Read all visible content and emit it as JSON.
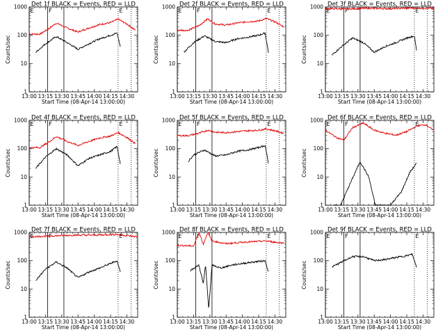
{
  "chart_data": {
    "type": "line",
    "xlabel": "Start Time (08-Apr-14 13:00:00)",
    "ylabel": "Counts/sec",
    "y_scale": "log",
    "ylim": [
      1,
      1000
    ],
    "xlim": [
      "13:00",
      "14:40"
    ],
    "x_tick_labels": [
      "13:00",
      "13:15",
      "13:30",
      "13:45",
      "14:00",
      "14:15",
      "14:30"
    ],
    "y_tick_labels": [
      "1",
      "10",
      "100",
      "1000"
    ],
    "series_colors": {
      "events": "#000000",
      "lld": "#e00000"
    },
    "panels": [
      {
        "title": "Det 1f BLACK = Events, RED = LLD",
        "markers": [
          {
            "label": "E",
            "time": "13:00",
            "style": "solid"
          },
          {
            "label": "F",
            "time": "13:17",
            "style": "solid"
          },
          {
            "label": "",
            "time": "13:32",
            "style": "solid"
          },
          {
            "label": "E",
            "time": "14:22",
            "style": "dotted"
          },
          {
            "label": "",
            "time": "14:34",
            "style": "dotted"
          }
        ],
        "events": [
          [
            "13:06",
            25
          ],
          [
            "13:15",
            50
          ],
          [
            "13:25",
            90
          ],
          [
            "13:35",
            55
          ],
          [
            "13:45",
            32
          ],
          [
            "13:55",
            50
          ],
          [
            "14:05",
            75
          ],
          [
            "14:15",
            100
          ],
          [
            "14:21",
            120
          ],
          [
            "14:24",
            40
          ]
        ],
        "lld": [
          [
            "13:00",
            110
          ],
          [
            "13:10",
            110
          ],
          [
            "13:18",
            170
          ],
          [
            "13:25",
            270
          ],
          [
            "13:35",
            180
          ],
          [
            "13:45",
            130
          ],
          [
            "13:55",
            180
          ],
          [
            "14:05",
            240
          ],
          [
            "14:15",
            280
          ],
          [
            "14:22",
            370
          ],
          [
            "14:30",
            250
          ],
          [
            "14:38",
            150
          ]
        ]
      },
      {
        "title": "Det 2f BLACK = Events, RED = LLD",
        "markers": [
          {
            "label": "E",
            "time": "13:00",
            "style": "solid"
          },
          {
            "label": "F",
            "time": "13:17",
            "style": "solid"
          },
          {
            "label": "",
            "time": "13:32",
            "style": "solid"
          },
          {
            "label": "E",
            "time": "14:22",
            "style": "dotted"
          },
          {
            "label": "",
            "time": "14:34",
            "style": "dotted"
          }
        ],
        "events": [
          [
            "13:06",
            25
          ],
          [
            "13:15",
            55
          ],
          [
            "13:25",
            95
          ],
          [
            "13:35",
            60
          ],
          [
            "13:45",
            55
          ],
          [
            "13:55",
            75
          ],
          [
            "14:05",
            85
          ],
          [
            "14:15",
            100
          ],
          [
            "14:21",
            120
          ],
          [
            "14:24",
            25
          ]
        ],
        "lld": [
          [
            "13:00",
            150
          ],
          [
            "13:10",
            150
          ],
          [
            "13:20",
            220
          ],
          [
            "13:28",
            380
          ],
          [
            "13:35",
            250
          ],
          [
            "13:45",
            230
          ],
          [
            "13:55",
            270
          ],
          [
            "14:05",
            300
          ],
          [
            "14:15",
            320
          ],
          [
            "14:22",
            390
          ],
          [
            "14:30",
            300
          ],
          [
            "14:38",
            200
          ]
        ]
      },
      {
        "title": "Det 3f BLACK = Events, RED = LLD",
        "markers": [
          {
            "label": "E",
            "time": "13:00",
            "style": "solid"
          },
          {
            "label": "F",
            "time": "13:17",
            "style": "solid"
          },
          {
            "label": "",
            "time": "13:32",
            "style": "solid"
          },
          {
            "label": "E",
            "time": "14:22",
            "style": "dotted"
          },
          {
            "label": "",
            "time": "14:34",
            "style": "dotted"
          }
        ],
        "events": [
          [
            "13:06",
            20
          ],
          [
            "13:15",
            40
          ],
          [
            "13:25",
            80
          ],
          [
            "13:35",
            55
          ],
          [
            "13:45",
            25
          ],
          [
            "13:55",
            40
          ],
          [
            "14:05",
            55
          ],
          [
            "14:15",
            80
          ],
          [
            "14:22",
            95
          ],
          [
            "14:24",
            30
          ]
        ],
        "lld": [
          [
            "13:00",
            880
          ],
          [
            "13:20",
            850
          ],
          [
            "13:40",
            900
          ],
          [
            "14:00",
            870
          ],
          [
            "14:20",
            920
          ],
          [
            "14:40",
            880
          ]
        ]
      },
      {
        "title": "Det 4f BLACK = Events, RED = LLD",
        "markers": [
          {
            "label": "E",
            "time": "13:00",
            "style": "solid"
          },
          {
            "label": "F",
            "time": "13:17",
            "style": "solid"
          },
          {
            "label": "",
            "time": "13:32",
            "style": "solid"
          },
          {
            "label": "E",
            "time": "14:22",
            "style": "dotted"
          },
          {
            "label": "",
            "time": "14:34",
            "style": "dotted"
          }
        ],
        "events": [
          [
            "13:06",
            20
          ],
          [
            "13:15",
            50
          ],
          [
            "13:25",
            100
          ],
          [
            "13:35",
            60
          ],
          [
            "13:45",
            25
          ],
          [
            "13:55",
            45
          ],
          [
            "14:05",
            60
          ],
          [
            "14:15",
            80
          ],
          [
            "14:21",
            120
          ],
          [
            "14:24",
            30
          ]
        ],
        "lld": [
          [
            "13:00",
            110
          ],
          [
            "13:10",
            110
          ],
          [
            "13:18",
            170
          ],
          [
            "13:25",
            270
          ],
          [
            "13:35",
            180
          ],
          [
            "13:45",
            130
          ],
          [
            "13:55",
            180
          ],
          [
            "14:05",
            240
          ],
          [
            "14:15",
            280
          ],
          [
            "14:22",
            370
          ],
          [
            "14:30",
            250
          ],
          [
            "14:38",
            150
          ]
        ]
      },
      {
        "title": "Det 5f BLACK = Events, RED = LLD",
        "markers": [
          {
            "label": "E",
            "time": "13:00",
            "style": "solid"
          },
          {
            "label": "F",
            "time": "13:17",
            "style": "solid"
          },
          {
            "label": "",
            "time": "13:32",
            "style": "solid"
          },
          {
            "label": "E",
            "time": "14:22",
            "style": "dotted"
          },
          {
            "label": "",
            "time": "14:34",
            "style": "dotted"
          }
        ],
        "events": [
          [
            "13:10",
            35
          ],
          [
            "13:15",
            60
          ],
          [
            "13:25",
            90
          ],
          [
            "13:35",
            55
          ],
          [
            "13:45",
            60
          ],
          [
            "13:55",
            80
          ],
          [
            "14:05",
            90
          ],
          [
            "14:15",
            110
          ],
          [
            "14:21",
            130
          ],
          [
            "14:24",
            30
          ]
        ],
        "lld": [
          [
            "13:00",
            290
          ],
          [
            "13:10",
            290
          ],
          [
            "13:20",
            350
          ],
          [
            "13:28",
            450
          ],
          [
            "13:35",
            380
          ],
          [
            "13:45",
            370
          ],
          [
            "13:55",
            400
          ],
          [
            "14:05",
            430
          ],
          [
            "14:15",
            450
          ],
          [
            "14:22",
            500
          ],
          [
            "14:30",
            430
          ],
          [
            "14:38",
            350
          ]
        ]
      },
      {
        "title": "Det 6f BLACK = Events, RED = LLD",
        "markers": [
          {
            "label": "E",
            "time": "13:00",
            "style": "solid"
          },
          {
            "label": "F",
            "time": "13:17",
            "style": "solid"
          },
          {
            "label": "",
            "time": "13:32",
            "style": "solid"
          },
          {
            "label": "E",
            "time": "14:22",
            "style": "dotted"
          },
          {
            "label": "",
            "time": "14:34",
            "style": "dotted"
          }
        ],
        "events": [
          [
            "13:08",
            1
          ],
          [
            "13:14",
            1
          ],
          [
            "13:22",
            5
          ],
          [
            "13:32",
            35
          ],
          [
            "13:40",
            10
          ],
          [
            "13:46",
            1
          ],
          [
            "14:00",
            1
          ],
          [
            "14:10",
            3
          ],
          [
            "14:18",
            15
          ],
          [
            "14:24",
            30
          ]
        ],
        "lld": [
          [
            "13:00",
            450
          ],
          [
            "13:10",
            250
          ],
          [
            "13:17",
            200
          ],
          [
            "13:25",
            550
          ],
          [
            "13:35",
            800
          ],
          [
            "13:45",
            450
          ],
          [
            "13:55",
            350
          ],
          [
            "14:05",
            300
          ],
          [
            "14:15",
            400
          ],
          [
            "14:25",
            650
          ],
          [
            "14:33",
            700
          ],
          [
            "14:39",
            450
          ]
        ]
      },
      {
        "title": "Det 7f BLACK = Events, RED = LLD",
        "markers": [
          {
            "label": "E",
            "time": "13:00",
            "style": "solid"
          },
          {
            "label": "F",
            "time": "13:17",
            "style": "solid"
          },
          {
            "label": "",
            "time": "13:32",
            "style": "solid"
          },
          {
            "label": "E",
            "time": "14:22",
            "style": "dotted"
          },
          {
            "label": "",
            "time": "14:34",
            "style": "dotted"
          }
        ],
        "events": [
          [
            "13:06",
            20
          ],
          [
            "13:15",
            50
          ],
          [
            "13:25",
            90
          ],
          [
            "13:35",
            55
          ],
          [
            "13:45",
            25
          ],
          [
            "13:55",
            40
          ],
          [
            "14:05",
            55
          ],
          [
            "14:15",
            80
          ],
          [
            "14:21",
            100
          ],
          [
            "14:24",
            40
          ]
        ],
        "lld": [
          [
            "13:00",
            700
          ],
          [
            "13:20",
            750
          ],
          [
            "13:40",
            800
          ],
          [
            "14:00",
            800
          ],
          [
            "14:20",
            850
          ],
          [
            "14:40",
            700
          ]
        ]
      },
      {
        "title": "Det 8f BLACK = Events, RED = LLD",
        "markers": [
          {
            "label": "E",
            "time": "13:00",
            "style": "solid"
          },
          {
            "label": "F",
            "time": "13:17",
            "style": "solid"
          },
          {
            "label": "",
            "time": "13:32",
            "style": "solid"
          },
          {
            "label": "E",
            "time": "14:22",
            "style": "dotted"
          },
          {
            "label": "",
            "time": "14:34",
            "style": "dotted"
          }
        ],
        "events": [
          [
            "13:12",
            45
          ],
          [
            "13:20",
            70
          ],
          [
            "13:24",
            15
          ],
          [
            "13:26",
            70
          ],
          [
            "13:29",
            2
          ],
          [
            "13:32",
            70
          ],
          [
            "13:40",
            55
          ],
          [
            "13:50",
            70
          ],
          [
            "14:00",
            80
          ],
          [
            "14:15",
            95
          ],
          [
            "14:21",
            100
          ],
          [
            "14:24",
            40
          ]
        ],
        "lld": [
          [
            "13:00",
            350
          ],
          [
            "13:15",
            330
          ],
          [
            "13:20",
            1000
          ],
          [
            "13:24",
            380
          ],
          [
            "13:28",
            1000
          ],
          [
            "13:32",
            500
          ],
          [
            "13:45",
            400
          ],
          [
            "14:00",
            450
          ],
          [
            "14:15",
            480
          ],
          [
            "14:22",
            500
          ],
          [
            "14:30",
            450
          ],
          [
            "14:38",
            420
          ]
        ]
      },
      {
        "title": "Det 9f BLACK = Events, RED = LLD",
        "markers": [
          {
            "label": "E",
            "time": "13:00",
            "style": "solid"
          },
          {
            "label": "F",
            "time": "13:17",
            "style": "solid"
          },
          {
            "label": "",
            "time": "13:32",
            "style": "solid"
          },
          {
            "label": "E",
            "time": "14:22",
            "style": "dotted"
          },
          {
            "label": "",
            "time": "14:34",
            "style": "dotted"
          }
        ],
        "events": [
          [
            "13:06",
            60
          ],
          [
            "13:15",
            90
          ],
          [
            "13:25",
            140
          ],
          [
            "13:35",
            140
          ],
          [
            "13:45",
            100
          ],
          [
            "13:55",
            110
          ],
          [
            "14:05",
            130
          ],
          [
            "14:15",
            150
          ],
          [
            "14:20",
            170
          ],
          [
            "14:24",
            60
          ]
        ],
        "lld": []
      }
    ]
  }
}
